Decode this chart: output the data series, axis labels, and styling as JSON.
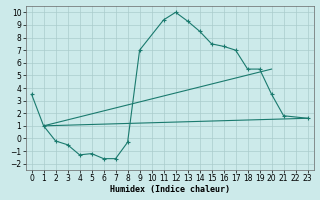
{
  "xlabel": "Humidex (Indice chaleur)",
  "background_color": "#cceaea",
  "grid_color": "#aacccc",
  "line_color": "#1a7a6e",
  "xlim": [
    -0.5,
    23.5
  ],
  "ylim": [
    -2.5,
    10.5
  ],
  "xticks": [
    0,
    1,
    2,
    3,
    4,
    5,
    6,
    7,
    8,
    9,
    10,
    11,
    12,
    13,
    14,
    15,
    16,
    17,
    18,
    19,
    20,
    21,
    22,
    23
  ],
  "yticks": [
    -2,
    -1,
    0,
    1,
    2,
    3,
    4,
    5,
    6,
    7,
    8,
    9,
    10
  ],
  "line1_x": [
    0,
    1,
    2,
    3,
    4,
    5,
    6,
    7,
    8,
    9,
    11,
    12,
    13,
    14,
    15,
    16,
    17,
    18,
    19,
    20,
    21,
    23
  ],
  "line1_y": [
    3.5,
    1.0,
    -0.2,
    -0.5,
    -1.3,
    -1.2,
    -1.6,
    -1.6,
    -0.3,
    7.0,
    9.4,
    10.0,
    9.3,
    8.5,
    7.5,
    7.3,
    7.0,
    5.5,
    5.5,
    3.5,
    1.8,
    1.6
  ],
  "line2_x": [
    1,
    23
  ],
  "line2_y": [
    1.0,
    1.6
  ],
  "line3_x": [
    1,
    20
  ],
  "line3_y": [
    1.0,
    5.5
  ],
  "xlabel_fontsize": 6.0,
  "tick_fontsize": 5.5,
  "linewidth": 0.8,
  "markersize": 3.5,
  "markeredgewidth": 0.8
}
